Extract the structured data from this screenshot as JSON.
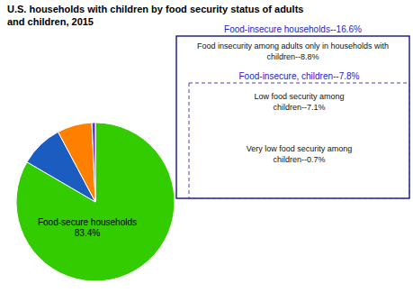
{
  "chart_data": {
    "type": "pie",
    "title": "U.S. households with children by food security status of adults\nand children, 2015",
    "values": [
      83.4,
      8.8,
      7.1,
      0.7
    ],
    "colors": [
      "#33cc00",
      "#1a5cbf",
      "#ff8000",
      "#6633cc"
    ],
    "annotations": [
      "Food-secure households\n83.4%",
      "Food-insecure households--16.6%",
      "Food insecurity among adults only in households with\nchildren--8.8%",
      "Food-insecure, children--7.8%",
      "Low food security among\nchildren--7.1%",
      "Very low food security among\nchildren--0.7%"
    ]
  }
}
